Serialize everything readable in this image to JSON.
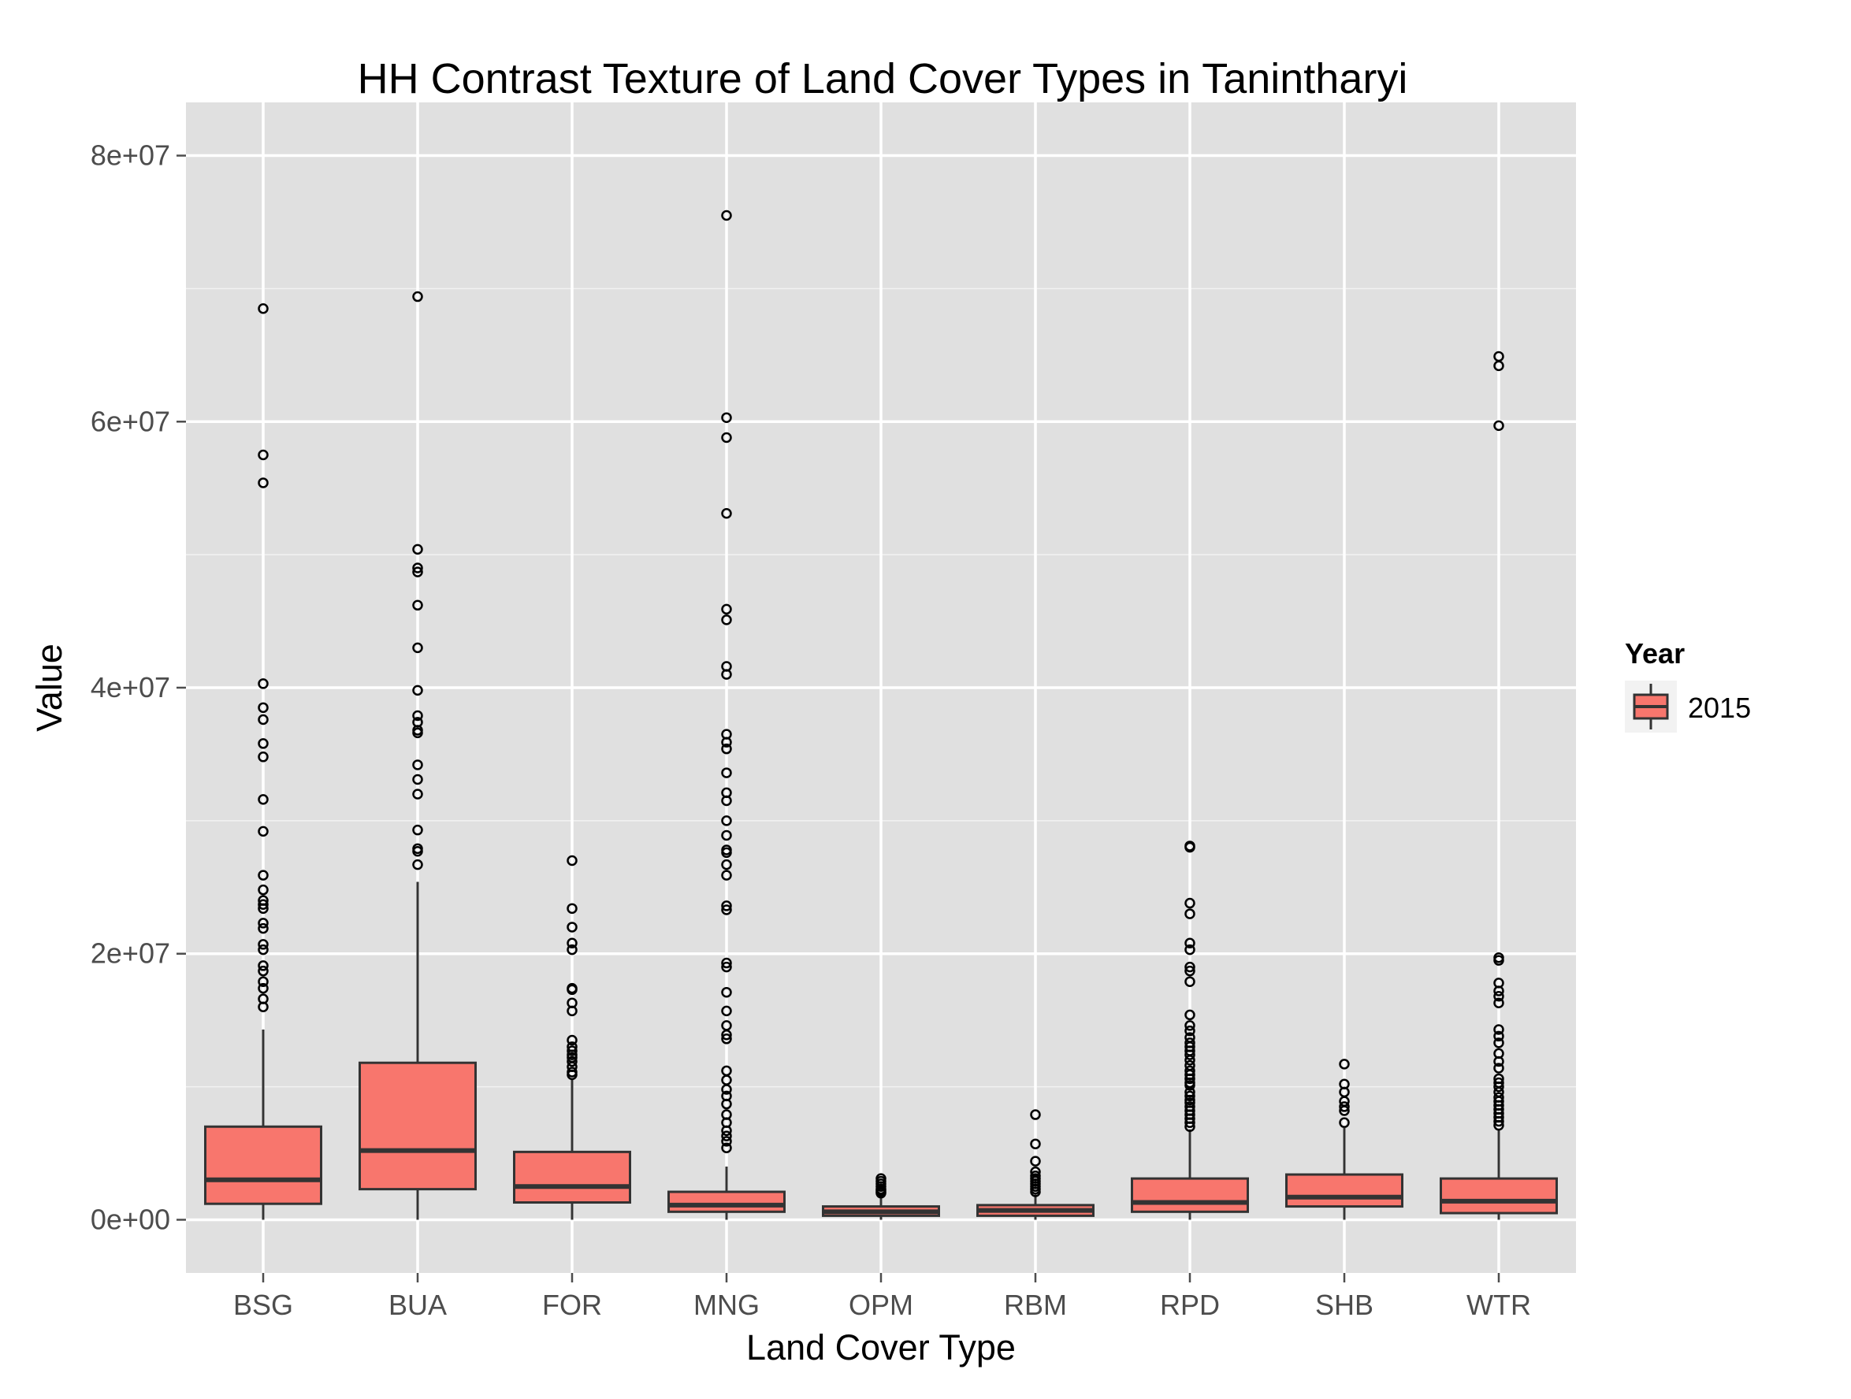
{
  "chart_data": {
    "type": "box",
    "title": "HH Contrast Texture of Land Cover Types in Tanintharyi",
    "xlabel": "Land Cover Type",
    "ylabel": "Value",
    "ylim": [
      -4000000,
      84000000
    ],
    "y_ticks": [
      0,
      20000000,
      40000000,
      60000000,
      80000000
    ],
    "y_tick_labels": [
      "0e+00",
      "2e+07",
      "4e+07",
      "6e+07",
      "8e+07"
    ],
    "grid": true,
    "legend": {
      "title": "Year",
      "position": "right",
      "entries": [
        "2015"
      ]
    },
    "colors": {
      "panel": "#e0e0e0",
      "grid": "#ffffff",
      "box_fill": "#f8766d",
      "box_line": "#333333",
      "tick": "#4d4d4d"
    },
    "categories": [
      "BSG",
      "BUA",
      "FOR",
      "MNG",
      "OPM",
      "RBM",
      "RPD",
      "SHB",
      "WTR"
    ],
    "boxes": [
      {
        "category": "BSG",
        "q1": 1200000,
        "median": 3000000,
        "q3": 7000000,
        "whisker_low": 0,
        "whisker_high": 14300000,
        "outliers": [
          68500000,
          57500000,
          55400000,
          40300000,
          38500000,
          37600000,
          35800000,
          34800000,
          31600000,
          29200000,
          25900000,
          24800000,
          24000000,
          23700000,
          23400000,
          22300000,
          21900000,
          20700000,
          20300000,
          19100000,
          18700000,
          17900000,
          17400000,
          16600000,
          16000000
        ]
      },
      {
        "category": "BUA",
        "q1": 2300000,
        "median": 5200000,
        "q3": 11800000,
        "whisker_low": 0,
        "whisker_high": 25400000,
        "outliers": [
          69400000,
          50400000,
          49000000,
          48700000,
          46200000,
          43000000,
          39800000,
          37900000,
          37400000,
          36800000,
          36600000,
          34200000,
          33100000,
          32000000,
          29300000,
          27900000,
          27700000,
          26700000
        ]
      },
      {
        "category": "FOR",
        "q1": 1300000,
        "median": 2500000,
        "q3": 5100000,
        "whisker_low": 0,
        "whisker_high": 10600000,
        "outliers": [
          27000000,
          23400000,
          22000000,
          20800000,
          20300000,
          17400000,
          17300000,
          16300000,
          15700000,
          13500000,
          13000000,
          12700000,
          12400000,
          12200000,
          11900000,
          11500000,
          11100000,
          10900000
        ]
      },
      {
        "category": "MNG",
        "q1": 600000,
        "median": 1100000,
        "q3": 2100000,
        "whisker_low": 0,
        "whisker_high": 4000000,
        "outliers": [
          75500000,
          60300000,
          58800000,
          53100000,
          45900000,
          45100000,
          41600000,
          41000000,
          36500000,
          35900000,
          35400000,
          33600000,
          32100000,
          31500000,
          30000000,
          28900000,
          27800000,
          27600000,
          26700000,
          25900000,
          23600000,
          23300000,
          19300000,
          19000000,
          17100000,
          15700000,
          14600000,
          13900000,
          13600000,
          11200000,
          10500000,
          9800000,
          9300000,
          8700000,
          7900000,
          7300000,
          6700000,
          6300000,
          5900000,
          5400000
        ]
      },
      {
        "category": "OPM",
        "q1": 300000,
        "median": 600000,
        "q3": 1000000,
        "whisker_low": 0,
        "whisker_high": 1700000,
        "outliers": [
          3100000,
          2900000,
          2700000,
          2500000,
          2300000,
          2200000,
          2100000,
          2000000
        ]
      },
      {
        "category": "RBM",
        "q1": 300000,
        "median": 700000,
        "q3": 1100000,
        "whisker_low": 0,
        "whisker_high": 1900000,
        "outliers": [
          7900000,
          5700000,
          4400000,
          3600000,
          3300000,
          3100000,
          2900000,
          2700000,
          2500000,
          2300000,
          2100000
        ]
      },
      {
        "category": "RPD",
        "q1": 600000,
        "median": 1300000,
        "q3": 3100000,
        "whisker_low": 0,
        "whisker_high": 6800000,
        "outliers": [
          28100000,
          28000000,
          23800000,
          23000000,
          20800000,
          20300000,
          19000000,
          18700000,
          17900000,
          15400000,
          14600000,
          14200000,
          13700000,
          13300000,
          13000000,
          12700000,
          12400000,
          12000000,
          11600000,
          11200000,
          10900000,
          10600000,
          10300000,
          10100000,
          9600000,
          9300000,
          9000000,
          8800000,
          8500000,
          8200000,
          7900000,
          7600000,
          7300000,
          7000000
        ]
      },
      {
        "category": "SHB",
        "q1": 1000000,
        "median": 1700000,
        "q3": 3400000,
        "whisker_low": 0,
        "whisker_high": 6900000,
        "outliers": [
          11700000,
          10200000,
          9600000,
          8900000,
          8500000,
          8200000,
          7300000
        ]
      },
      {
        "category": "WTR",
        "q1": 500000,
        "median": 1400000,
        "q3": 3100000,
        "whisker_low": 0,
        "whisker_high": 6800000,
        "outliers": [
          64900000,
          64200000,
          59700000,
          19700000,
          19500000,
          17800000,
          17200000,
          16800000,
          16300000,
          14300000,
          13800000,
          13300000,
          12500000,
          11900000,
          11400000,
          10600000,
          10300000,
          10000000,
          9600000,
          9200000,
          8900000,
          8600000,
          8300000,
          8000000,
          7700000,
          7400000,
          7100000
        ]
      }
    ]
  }
}
